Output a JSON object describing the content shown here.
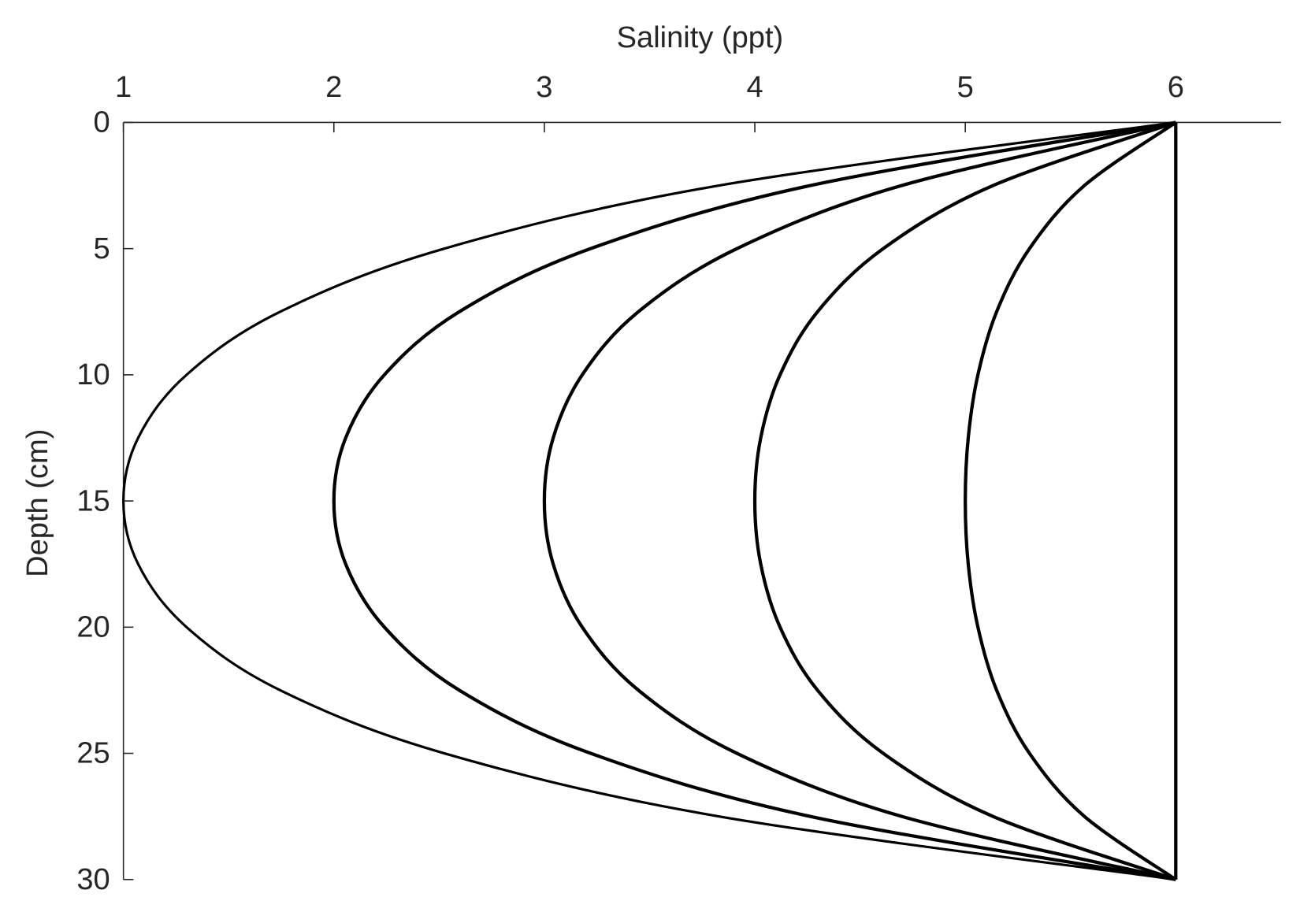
{
  "chart_data": {
    "type": "line",
    "xlabel": "Salinity (ppt)",
    "ylabel": "Depth (cm)",
    "y": [
      0,
      2.5,
      5,
      7.5,
      10,
      12.5,
      15,
      17.5,
      20,
      22.5,
      25,
      27.5,
      30
    ],
    "series": [
      {
        "color": "#000000",
        "values": [
          6,
          3.83,
          2.525,
          1.745,
          1.3,
          1.07,
          1,
          1.07,
          1.3,
          1.745,
          2.525,
          3.83,
          6
        ]
      },
      {
        "color": "#000000",
        "values": [
          6,
          4.264,
          3.22,
          2.596,
          2.24,
          2.056,
          2,
          2.056,
          2.24,
          2.596,
          3.22,
          4.264,
          6
        ]
      },
      {
        "color": "#000000",
        "values": [
          6,
          4.698,
          3.915,
          3.447,
          3.18,
          3.042,
          3,
          3.042,
          3.18,
          3.447,
          3.915,
          4.698,
          6
        ]
      },
      {
        "color": "#000000",
        "values": [
          6,
          5.132,
          4.61,
          4.298,
          4.12,
          4.028,
          4,
          4.028,
          4.12,
          4.298,
          4.61,
          5.132,
          6
        ]
      },
      {
        "color": "#000000",
        "values": [
          6,
          5.566,
          5.305,
          5.149,
          5.06,
          5.014,
          5,
          5.014,
          5.06,
          5.149,
          5.305,
          5.566,
          6
        ]
      },
      {
        "color": "#000000",
        "values": [
          6,
          6,
          6,
          6,
          6,
          6,
          6,
          6,
          6,
          6,
          6,
          6,
          6
        ]
      }
    ],
    "xlim": [
      1,
      6.5
    ],
    "xticks": [
      1,
      2,
      3,
      4,
      5,
      6
    ],
    "ylim": [
      0,
      30
    ],
    "yticks": [
      0,
      5,
      10,
      15,
      20,
      25,
      30
    ],
    "y_reversed": true,
    "x_axis_position": "top",
    "grid": false
  }
}
